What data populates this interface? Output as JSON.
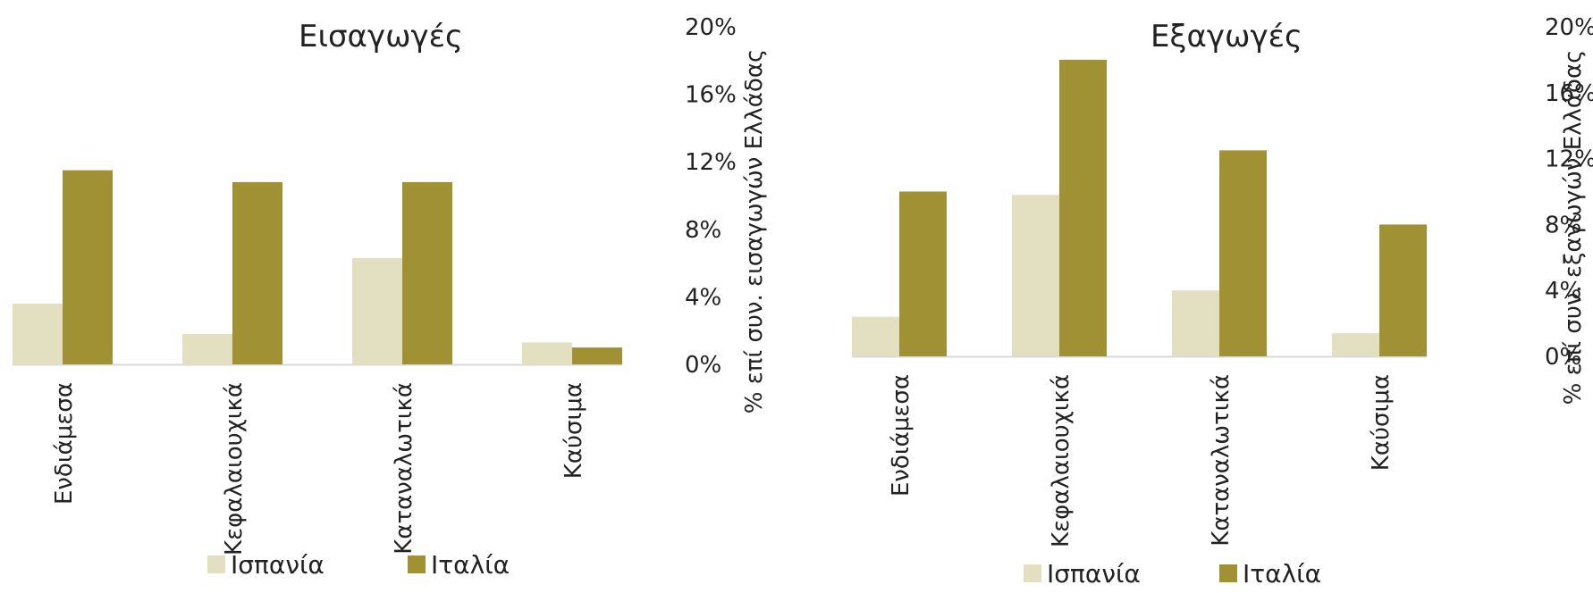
{
  "colors": {
    "spain": "#e3dfc1",
    "italy": "#a09234",
    "baseline": "#d9d9d9"
  },
  "legend": [
    {
      "name": "Ισπανία",
      "color": "#e3dfc1"
    },
    {
      "name": "Ιταλία",
      "color": "#a09234"
    }
  ],
  "chart_data": [
    {
      "type": "bar",
      "title": "Εισαγωγές",
      "ylabel": "% επί συν. εισαγωγών Ελλάδας",
      "yticks": [
        "20%",
        "16%",
        "12%",
        "8%",
        "4%",
        "0%"
      ],
      "ylim": [
        0,
        20
      ],
      "y_axis": "right",
      "legend_position": "bottom",
      "categories": [
        "Ενδιάμεσα",
        "Κεφαλαιουχικά",
        "Καταναλωτικά",
        "Καύσιμα"
      ],
      "series": [
        {
          "name": "Ισπανία",
          "color": "#e3dfc1",
          "values": [
            3.6,
            1.8,
            6.3,
            1.3
          ]
        },
        {
          "name": "Ιταλία",
          "color": "#a09234",
          "values": [
            11.5,
            10.8,
            10.8,
            1.0
          ]
        }
      ]
    },
    {
      "type": "bar",
      "title": "Εξαγωγές",
      "ylabel": "% επί συν. εξαγωγών Ελλάδας",
      "yticks": [
        "20%",
        "16%",
        "12%",
        "8%",
        "4%",
        "0%"
      ],
      "ylim": [
        0,
        20
      ],
      "y_axis": "right",
      "legend_position": "bottom",
      "categories": [
        "Ενδιάμεσα",
        "Κεφαλαιουχικά",
        "Καταναλωτικά",
        "Καύσιμα"
      ],
      "series": [
        {
          "name": "Ισπανία",
          "color": "#e3dfc1",
          "values": [
            2.4,
            9.8,
            4.0,
            1.4
          ]
        },
        {
          "name": "Ιταλία",
          "color": "#a09234",
          "values": [
            10.0,
            18.0,
            12.5,
            8.0
          ]
        }
      ]
    }
  ]
}
